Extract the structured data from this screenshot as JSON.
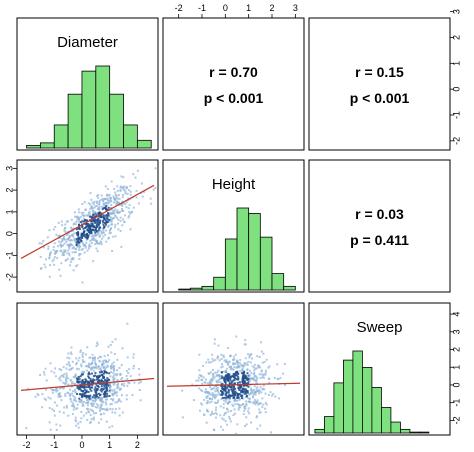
{
  "chart_data": {
    "type": "scatter-matrix",
    "variables": [
      "Diameter",
      "Height",
      "Sweep"
    ],
    "colors": {
      "bar_fill": "#7ee07e",
      "bar_stroke": "#000000",
      "regression_line": "#c0392b",
      "point_dark": "#1f4e8c",
      "point_light": "#8fb3d9"
    },
    "histograms": [
      {
        "name": "Diameter",
        "bins": [
          -2.0,
          -1.5,
          -1.0,
          -0.5,
          0.0,
          0.5,
          1.0,
          1.5,
          2.0,
          2.5
        ],
        "counts": [
          2,
          4,
          18,
          42,
          60,
          64,
          42,
          18,
          6
        ]
      },
      {
        "name": "Height",
        "bins": [
          -2.0,
          -1.5,
          -1.0,
          -0.5,
          0.0,
          0.5,
          1.0,
          1.5,
          2.0,
          2.5,
          3.0
        ],
        "counts": [
          1,
          2,
          4,
          14,
          56,
          90,
          84,
          58,
          18,
          4
        ]
      },
      {
        "name": "Sweep",
        "bins": [
          -2.5,
          -2.0,
          -1.5,
          -1.0,
          -0.5,
          0.0,
          0.5,
          1.0,
          1.5,
          2.0,
          2.5,
          3.0,
          3.5
        ],
        "counts": [
          4,
          18,
          55,
          80,
          90,
          72,
          50,
          28,
          12,
          4,
          1,
          1
        ]
      }
    ],
    "correlations": [
      {
        "pair": [
          "Diameter",
          "Height"
        ],
        "r_text": "r = 0.70",
        "p_text": "p < 0.001",
        "r": 0.7
      },
      {
        "pair": [
          "Diameter",
          "Sweep"
        ],
        "r_text": "r = 0.15",
        "p_text": "p < 0.001",
        "r": 0.15
      },
      {
        "pair": [
          "Height",
          "Sweep"
        ],
        "r_text": "r = 0.03",
        "p_text": "p = 0.411",
        "r": 0.03
      }
    ],
    "regression_lines": [
      {
        "x": "Diameter",
        "y": "Height",
        "slope": 0.7,
        "intercept": 0.4
      },
      {
        "x": "Diameter",
        "y": "Sweep",
        "slope": 0.14,
        "intercept": 0.0
      },
      {
        "x": "Height",
        "y": "Sweep",
        "slope": 0.03,
        "intercept": 0.0
      }
    ],
    "axes": {
      "x_ticks_bottom_left": [
        "-2",
        "-1",
        "0",
        "1",
        "2"
      ],
      "x_ticks_top_middle": [
        "-2",
        "-1",
        "0",
        "1",
        "2",
        "3"
      ],
      "y_ticks_left_middle": [
        "-2",
        "-1",
        "0",
        "1",
        "2",
        "3"
      ],
      "y_ticks_right_top": [
        "-2",
        "-1",
        "0",
        "1",
        "2",
        "3"
      ],
      "y_ticks_right_bottom": [
        "-2",
        "-1",
        "0",
        "1",
        "2",
        "3",
        "4"
      ],
      "diameter_range": [
        -2.2,
        2.6
      ],
      "height_range": [
        -2.5,
        3.2
      ],
      "sweep_range": [
        -2.6,
        4.4
      ]
    }
  }
}
